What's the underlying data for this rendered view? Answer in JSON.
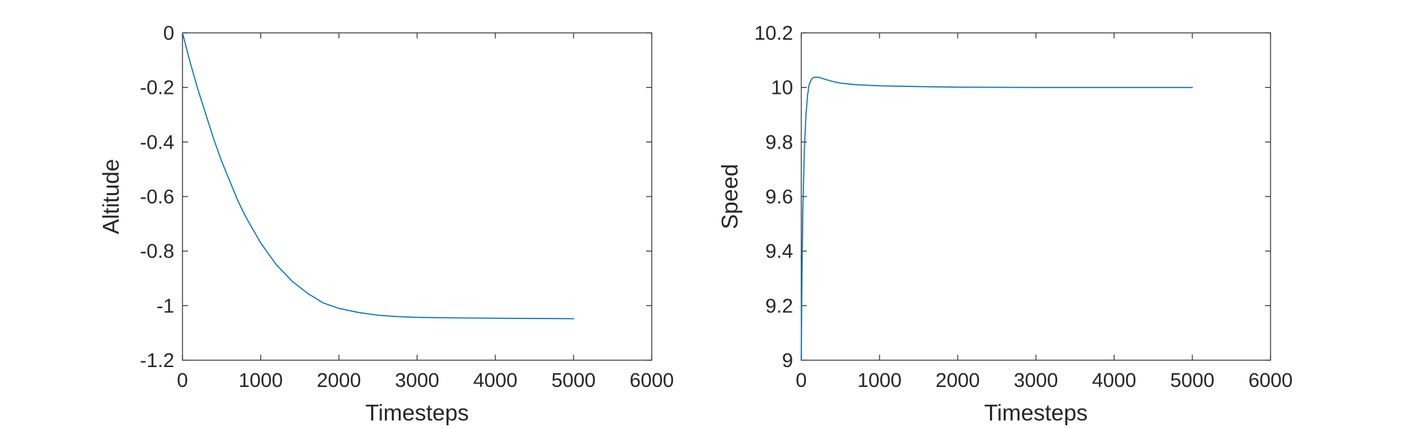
{
  "chart_data": [
    {
      "type": "line",
      "xlabel": "Timesteps",
      "ylabel": "Altitude",
      "xlim": [
        0,
        6000
      ],
      "ylim": [
        -1.2,
        0
      ],
      "xticks": [
        "0",
        "1000",
        "2000",
        "3000",
        "4000",
        "5000",
        "6000"
      ],
      "yticks": [
        "0",
        "-0.2",
        "-0.4",
        "-0.6",
        "-0.8",
        "-1",
        "-1.2"
      ],
      "xtick_values": [
        0,
        1000,
        2000,
        3000,
        4000,
        5000,
        6000
      ],
      "ytick_values": [
        0,
        -0.2,
        -0.4,
        -0.6,
        -0.8,
        -1,
        -1.2
      ],
      "grid": false,
      "line_color": "#0072BD",
      "series": [
        {
          "x": [
            0,
            100,
            200,
            300,
            400,
            500,
            600,
            700,
            800,
            900,
            1000,
            1200,
            1400,
            1600,
            1800,
            2000,
            2250,
            2500,
            2750,
            3000,
            3500,
            4000,
            4500,
            5000
          ],
          "y": [
            0,
            -0.11,
            -0.21,
            -0.3,
            -0.39,
            -0.47,
            -0.54,
            -0.61,
            -0.67,
            -0.72,
            -0.77,
            -0.85,
            -0.91,
            -0.955,
            -0.99,
            -1.01,
            -1.025,
            -1.035,
            -1.04,
            -1.043,
            -1.045,
            -1.046,
            -1.047,
            -1.048
          ]
        }
      ]
    },
    {
      "type": "line",
      "xlabel": "Timesteps",
      "ylabel": "Speed",
      "xlim": [
        0,
        6000
      ],
      "ylim": [
        9,
        10.2
      ],
      "xticks": [
        "0",
        "1000",
        "2000",
        "3000",
        "4000",
        "5000",
        "6000"
      ],
      "yticks": [
        "10.2",
        "10",
        "9.8",
        "9.6",
        "9.4",
        "9.2",
        "9"
      ],
      "xtick_values": [
        0,
        1000,
        2000,
        3000,
        4000,
        5000,
        6000
      ],
      "ytick_values": [
        10.2,
        10,
        9.8,
        9.6,
        9.4,
        9.2,
        9
      ],
      "grid": false,
      "line_color": "#0072BD",
      "series": [
        {
          "x": [
            0,
            10,
            20,
            40,
            60,
            80,
            100,
            130,
            160,
            200,
            250,
            300,
            400,
            500,
            700,
            1000,
            1500,
            2000,
            3000,
            4000,
            5000
          ],
          "y": [
            9.0,
            9.35,
            9.55,
            9.78,
            9.9,
            9.97,
            10.01,
            10.03,
            10.037,
            10.038,
            10.035,
            10.03,
            10.022,
            10.016,
            10.01,
            10.006,
            10.003,
            10.001,
            10.0,
            10.0,
            10.0
          ]
        }
      ]
    }
  ]
}
